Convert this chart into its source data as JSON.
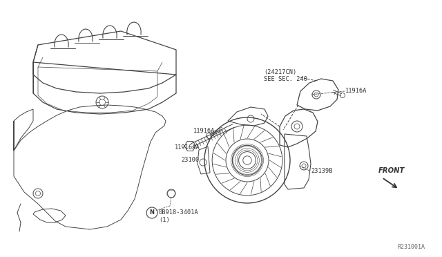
{
  "bg_color": "#ffffff",
  "fig_width": 6.4,
  "fig_height": 3.72,
  "dpi": 100,
  "labels": {
    "part_24217CN_line1": "(24217CN)",
    "part_24217CN_line2": "SEE SEC. 240",
    "part_11916A_left": "11916A",
    "part_11916A_right": "11916A",
    "part_11916AA": "11916AA",
    "part_23100": "23100",
    "part_23139B": "23139B",
    "part_0B918_line1": "0B918-3401A",
    "part_0B918_line2": "(1)",
    "ref_code": "R231001A",
    "front_label": "FRONT"
  },
  "line_color": "#444444",
  "text_color": "#333333",
  "font_size_labels": 6.2,
  "font_size_ref": 6.0
}
